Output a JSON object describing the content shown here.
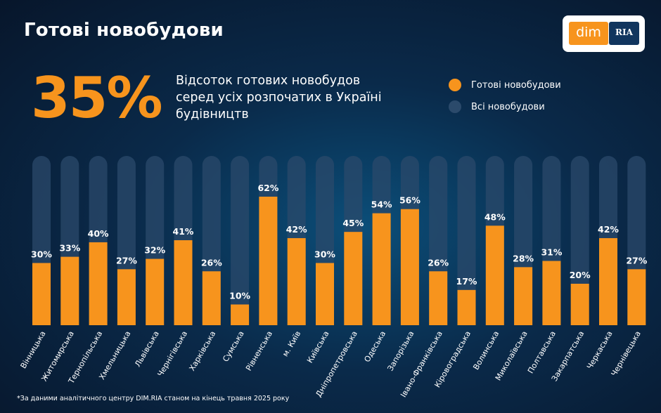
{
  "header": {
    "title": "Готові новобудови",
    "big_percent": "35%",
    "subtitle": "Відсоток готових новобудов серед усіх розпочатих в Україні будівництв"
  },
  "logo": {
    "dim_text": "dim",
    "ria_text": "RIA"
  },
  "legend": {
    "items": [
      {
        "label": "Готові новобудови",
        "color": "#f7941d"
      },
      {
        "label": "Всі новобудови",
        "color": "#2b4a6b"
      }
    ]
  },
  "footnote": "*За даними аналітичного центру DIM.RIA станом на кінець травня 2025 року",
  "chart_data": {
    "type": "bar",
    "categories": [
      "Вінницька",
      "Житомирська",
      "Тернопільська",
      "Хмельницька",
      "Львівська",
      "Чернігівська",
      "Харківська",
      "Сумська",
      "Рівненська",
      "м. Київ",
      "Київська",
      "Дніпропетровська",
      "Одеська",
      "Запорізька",
      "Івано-Франківська",
      "Кіровоградська",
      "Волинська",
      "Миколаївська",
      "Полтавська",
      "Закарпатська",
      "Черкаська",
      "Чернівецька"
    ],
    "series": [
      {
        "name": "Готові новобудови",
        "values": [
          30,
          33,
          40,
          27,
          32,
          41,
          26,
          10,
          62,
          42,
          30,
          45,
          54,
          56,
          26,
          17,
          48,
          28,
          31,
          20,
          42,
          27
        ],
        "color": "#f7941d"
      },
      {
        "name": "Всі новобудови",
        "values": [
          100,
          100,
          100,
          100,
          100,
          100,
          100,
          100,
          100,
          100,
          100,
          100,
          100,
          100,
          100,
          100,
          100,
          100,
          100,
          100,
          100,
          100
        ],
        "color": "#2b4a6b"
      }
    ],
    "value_labels": [
      "30%",
      "33%",
      "40%",
      "27%",
      "32%",
      "41%",
      "26%",
      "10%",
      "62%",
      "42%",
      "30%",
      "45%",
      "54%",
      "56%",
      "26%",
      "17%",
      "48%",
      "28%",
      "31%",
      "20%",
      "42%",
      "27%"
    ],
    "ylim": [
      0,
      80
    ],
    "grid": false
  }
}
